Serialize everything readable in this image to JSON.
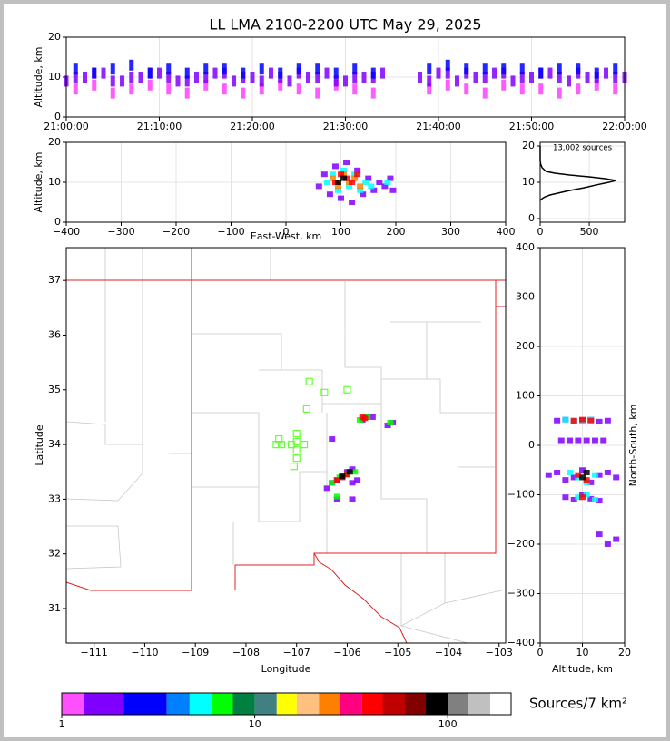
{
  "chart_data": [
    {
      "type": "scatter",
      "title": "LL LMA 2100-2200 UTC May 29, 2025",
      "y_label": "Altitude, km",
      "xlim": [
        0,
        60
      ],
      "ylim": [
        0,
        20
      ],
      "grid": true,
      "marker": "streak",
      "xticks": [
        {
          "value": 0,
          "label": "21:00:00"
        },
        {
          "value": 10,
          "label": "21:10:00"
        },
        {
          "value": 20,
          "label": "21:20:00"
        },
        {
          "value": 30,
          "label": "21:30:00"
        },
        {
          "value": 40,
          "label": "21:40:00"
        },
        {
          "value": 50,
          "label": "21:50:00"
        },
        {
          "value": 60,
          "label": "22:00:00"
        }
      ],
      "yticks": [
        0,
        10,
        20
      ],
      "series": [
        {
          "color": "#ff40ff",
          "x": [
            1,
            3,
            5,
            7,
            9,
            11,
            13,
            15,
            17,
            19,
            21,
            23,
            25,
            27,
            29,
            31,
            33,
            39,
            41,
            43,
            45,
            47,
            49,
            51,
            53,
            55,
            57,
            59
          ],
          "y": [
            7,
            8,
            6,
            7,
            8,
            7,
            6,
            8,
            7,
            6,
            7,
            8,
            7,
            6,
            8,
            7,
            6,
            7,
            8,
            7,
            6,
            8,
            7,
            7,
            6,
            7,
            8,
            7
          ]
        },
        {
          "color": "#8000ff",
          "x": [
            0,
            2,
            4,
            6,
            8,
            10,
            12,
            14,
            16,
            18,
            20,
            22,
            24,
            26,
            28,
            30,
            32,
            34,
            38,
            40,
            42,
            44,
            46,
            48,
            50,
            52,
            54,
            56,
            58,
            60
          ],
          "y": [
            9,
            10,
            11,
            9,
            10,
            11,
            9,
            10,
            11,
            9,
            10,
            11,
            9,
            10,
            11,
            9,
            10,
            11,
            10,
            11,
            9,
            10,
            11,
            9,
            10,
            11,
            9,
            10,
            11,
            10
          ]
        },
        {
          "color": "#8000ff",
          "x": [
            1,
            3,
            5,
            7,
            9,
            11,
            13,
            15,
            17,
            19,
            21,
            23,
            25,
            27,
            29,
            31,
            33,
            39,
            41,
            43,
            45,
            47,
            49,
            51,
            53,
            55,
            57,
            59
          ],
          "y": [
            10,
            11,
            9,
            10,
            11,
            10,
            9,
            10,
            11,
            10,
            9,
            10,
            11,
            10,
            9,
            10,
            10,
            9,
            11,
            11,
            10,
            11,
            10,
            11,
            10,
            11,
            10,
            10
          ]
        },
        {
          "color": "#0000ff",
          "x": [
            1,
            3,
            5,
            7,
            9,
            11,
            13,
            15,
            17,
            19,
            21,
            23,
            25,
            27,
            29,
            31,
            33,
            39,
            41,
            43,
            45,
            47,
            49,
            51,
            53,
            55,
            57,
            59
          ],
          "y": [
            12,
            11,
            12,
            13,
            11,
            12,
            11,
            12,
            12,
            11,
            12,
            11,
            12,
            12,
            11,
            12,
            11,
            12,
            13,
            12,
            12,
            12,
            12,
            11,
            12,
            12,
            11,
            12
          ]
        }
      ]
    },
    {
      "type": "scatter",
      "x_label": "East-West, km",
      "y_label": "Altitude, km",
      "xlim": [
        -400,
        400
      ],
      "ylim": [
        0,
        20
      ],
      "grid": true,
      "marker": "filled",
      "xticks": [
        {
          "value": -400,
          "label": "−400"
        },
        {
          "value": -300,
          "label": "−300"
        },
        {
          "value": -200,
          "label": "−200"
        },
        {
          "value": -100,
          "label": "−100"
        },
        0,
        100,
        200,
        300,
        400
      ],
      "yticks": [
        0,
        10,
        20
      ],
      "series": [
        {
          "color": "#8000ff",
          "x": [
            60,
            70,
            80,
            90,
            100,
            110,
            120,
            130,
            140,
            150,
            160,
            170,
            180,
            190,
            195
          ],
          "y": [
            9,
            12,
            7,
            14,
            6,
            15,
            5,
            13,
            7,
            11,
            8,
            10,
            9,
            11,
            8
          ]
        },
        {
          "color": "#00ffff",
          "x": [
            75,
            85,
            95,
            105,
            115,
            125,
            135,
            145,
            155,
            185
          ],
          "y": [
            10,
            12,
            8,
            13,
            9,
            12,
            8,
            10,
            9,
            10
          ]
        },
        {
          "color": "#ff8000",
          "x": [
            85,
            95,
            105,
            115,
            125,
            135
          ],
          "y": [
            11,
            9,
            12,
            10,
            11,
            9
          ]
        },
        {
          "color": "#ff0000",
          "x": [
            90,
            100,
            110,
            120,
            130
          ],
          "y": [
            10,
            12,
            11,
            10,
            12
          ]
        },
        {
          "color": "#000000",
          "x": [
            95,
            105
          ],
          "y": [
            10,
            11
          ]
        }
      ]
    },
    {
      "type": "line",
      "annotation": "13,002 sources",
      "xlim": [
        0,
        860
      ],
      "ylim": [
        -1,
        21
      ],
      "grid": true,
      "xticks": [
        0,
        500
      ],
      "yticks": [
        0,
        10,
        20
      ],
      "series": [
        {
          "color": "#000000",
          "x": [
            0,
            20,
            50,
            100,
            180,
            260,
            350,
            450,
            560,
            700,
            770,
            660,
            500,
            300,
            150,
            60,
            20,
            5,
            0,
            0
          ],
          "y": [
            5,
            5.5,
            6,
            6.5,
            7,
            7.5,
            8,
            8.5,
            9.2,
            10,
            10.5,
            11,
            11.5,
            12,
            12.5,
            13,
            14,
            15,
            16,
            20
          ]
        }
      ]
    },
    {
      "type": "scatter",
      "x_label": "Longitude",
      "y_label": "Latitude",
      "xlim": [
        -111.55,
        -102.87
      ],
      "ylim": [
        30.37,
        37.6
      ],
      "grid": false,
      "marker": "filled",
      "xticks": [
        {
          "value": -111,
          "label": "−111"
        },
        {
          "value": -110,
          "label": "−110"
        },
        {
          "value": -109,
          "label": "−109"
        },
        {
          "value": -108,
          "label": "−108"
        },
        {
          "value": -107,
          "label": "−107"
        },
        {
          "value": -106,
          "label": "−106"
        },
        {
          "value": -105,
          "label": "−105"
        },
        {
          "value": -104,
          "label": "−104"
        },
        {
          "value": -103,
          "label": "−103"
        }
      ],
      "yticks": [
        31,
        32,
        33,
        34,
        35,
        36,
        37
      ],
      "series": [
        {
          "color": "#8000ff",
          "x": [
            -106.4,
            -106.3,
            -106.2,
            -106.1,
            -106.0,
            -105.9,
            -105.8,
            -105.9,
            -106.2,
            -105.7,
            -105.6,
            -105.5,
            -105.2,
            -105.1,
            -106.3,
            -105.9
          ],
          "y": [
            33.2,
            33.3,
            33.35,
            33.4,
            33.5,
            33.3,
            33.35,
            33.0,
            33.0,
            34.45,
            34.5,
            34.5,
            34.35,
            34.4,
            34.1,
            33.55
          ]
        },
        {
          "color": "#00ff00",
          "x": [
            -106.3,
            -106.15,
            -106.0,
            -105.85,
            -105.75,
            -105.6,
            -105.15,
            -106.2
          ],
          "y": [
            33.3,
            33.4,
            33.45,
            33.5,
            34.45,
            34.5,
            34.4,
            33.05
          ]
        },
        {
          "color": "#ff0000",
          "x": [
            -106.2,
            -106.1,
            -106.0,
            -105.7,
            -105.65
          ],
          "y": [
            33.35,
            33.4,
            33.45,
            34.5,
            34.48
          ]
        },
        {
          "color": "#000000",
          "x": [
            -106.1,
            -105.95
          ],
          "y": [
            33.42,
            33.5
          ]
        },
        {
          "color": "#66ff33",
          "marker": "hollow-square",
          "x": [
            -106.75,
            -106.45,
            -106.0,
            -106.8,
            -107.0,
            -107.35,
            -107.4,
            -107.3,
            -107.1,
            -107.0,
            -106.85,
            -107.0,
            -107.0,
            -107.05
          ],
          "y": [
            35.15,
            34.95,
            35.0,
            34.65,
            34.2,
            34.1,
            34.0,
            34.0,
            34.0,
            34.05,
            34.0,
            33.9,
            33.75,
            33.6
          ]
        }
      ]
    },
    {
      "type": "scatter",
      "x_label": "Altitude, km",
      "y_label": "North-South, km",
      "y_label_side": "right",
      "xlim": [
        0,
        20
      ],
      "ylim": [
        -400,
        400
      ],
      "grid": true,
      "marker": "filled",
      "xticks": [
        0,
        10,
        20
      ],
      "yticks": [
        {
          "value": -400,
          "label": "−400"
        },
        {
          "value": -300,
          "label": "−300"
        },
        {
          "value": -200,
          "label": "−200"
        },
        {
          "value": -100,
          "label": "−100"
        },
        0,
        100,
        200,
        300,
        400
      ],
      "series": [
        {
          "color": "#8000ff",
          "x": [
            4,
            6,
            8,
            10,
            12,
            14,
            16,
            5,
            7,
            9,
            11,
            13,
            15,
            2,
            4,
            6,
            8,
            10,
            12,
            14,
            16,
            18,
            6,
            8,
            10,
            12,
            14,
            14,
            16,
            18
          ],
          "y": [
            50,
            52,
            48,
            50,
            52,
            48,
            50,
            10,
            10,
            10,
            10,
            10,
            10,
            -60,
            -55,
            -70,
            -65,
            -50,
            -75,
            -60,
            -55,
            -65,
            -105,
            -110,
            -100,
            -108,
            -112,
            -180,
            -200,
            -190
          ]
        },
        {
          "color": "#00ffff",
          "x": [
            6,
            8,
            10,
            12,
            7,
            9,
            11,
            13,
            9,
            11,
            13
          ],
          "y": [
            52,
            50,
            48,
            52,
            -55,
            -65,
            -75,
            -60,
            -105,
            -100,
            -110
          ]
        },
        {
          "color": "#ff0000",
          "x": [
            8,
            10,
            12,
            9,
            11,
            10
          ],
          "y": [
            50,
            52,
            50,
            -60,
            -70,
            -105
          ]
        },
        {
          "color": "#000000",
          "x": [
            10,
            11
          ],
          "y": [
            -65,
            -55
          ]
        }
      ]
    },
    {
      "type": "colorbar",
      "label": "Sources/7 km²",
      "log_scale": true,
      "xlim": [
        1,
        213
      ],
      "xticks": [
        1,
        10,
        100
      ],
      "bins": [
        1,
        1.3,
        2.1,
        3.5,
        4.6,
        6,
        7.7,
        10,
        13,
        16.5,
        21.5,
        27.5,
        36,
        46,
        60,
        77,
        100,
        128,
        166,
        213
      ],
      "colors": [
        "#ff50ff",
        "#8000ff",
        "#0000ff",
        "#0080ff",
        "#00ffff",
        "#00ff00",
        "#008040",
        "#408080",
        "#ffff00",
        "#ffc080",
        "#ff8000",
        "#ff0080",
        "#ff0000",
        "#c00000",
        "#800000",
        "#000000",
        "#808080",
        "#c0c0c0",
        "#ffffff"
      ]
    }
  ]
}
